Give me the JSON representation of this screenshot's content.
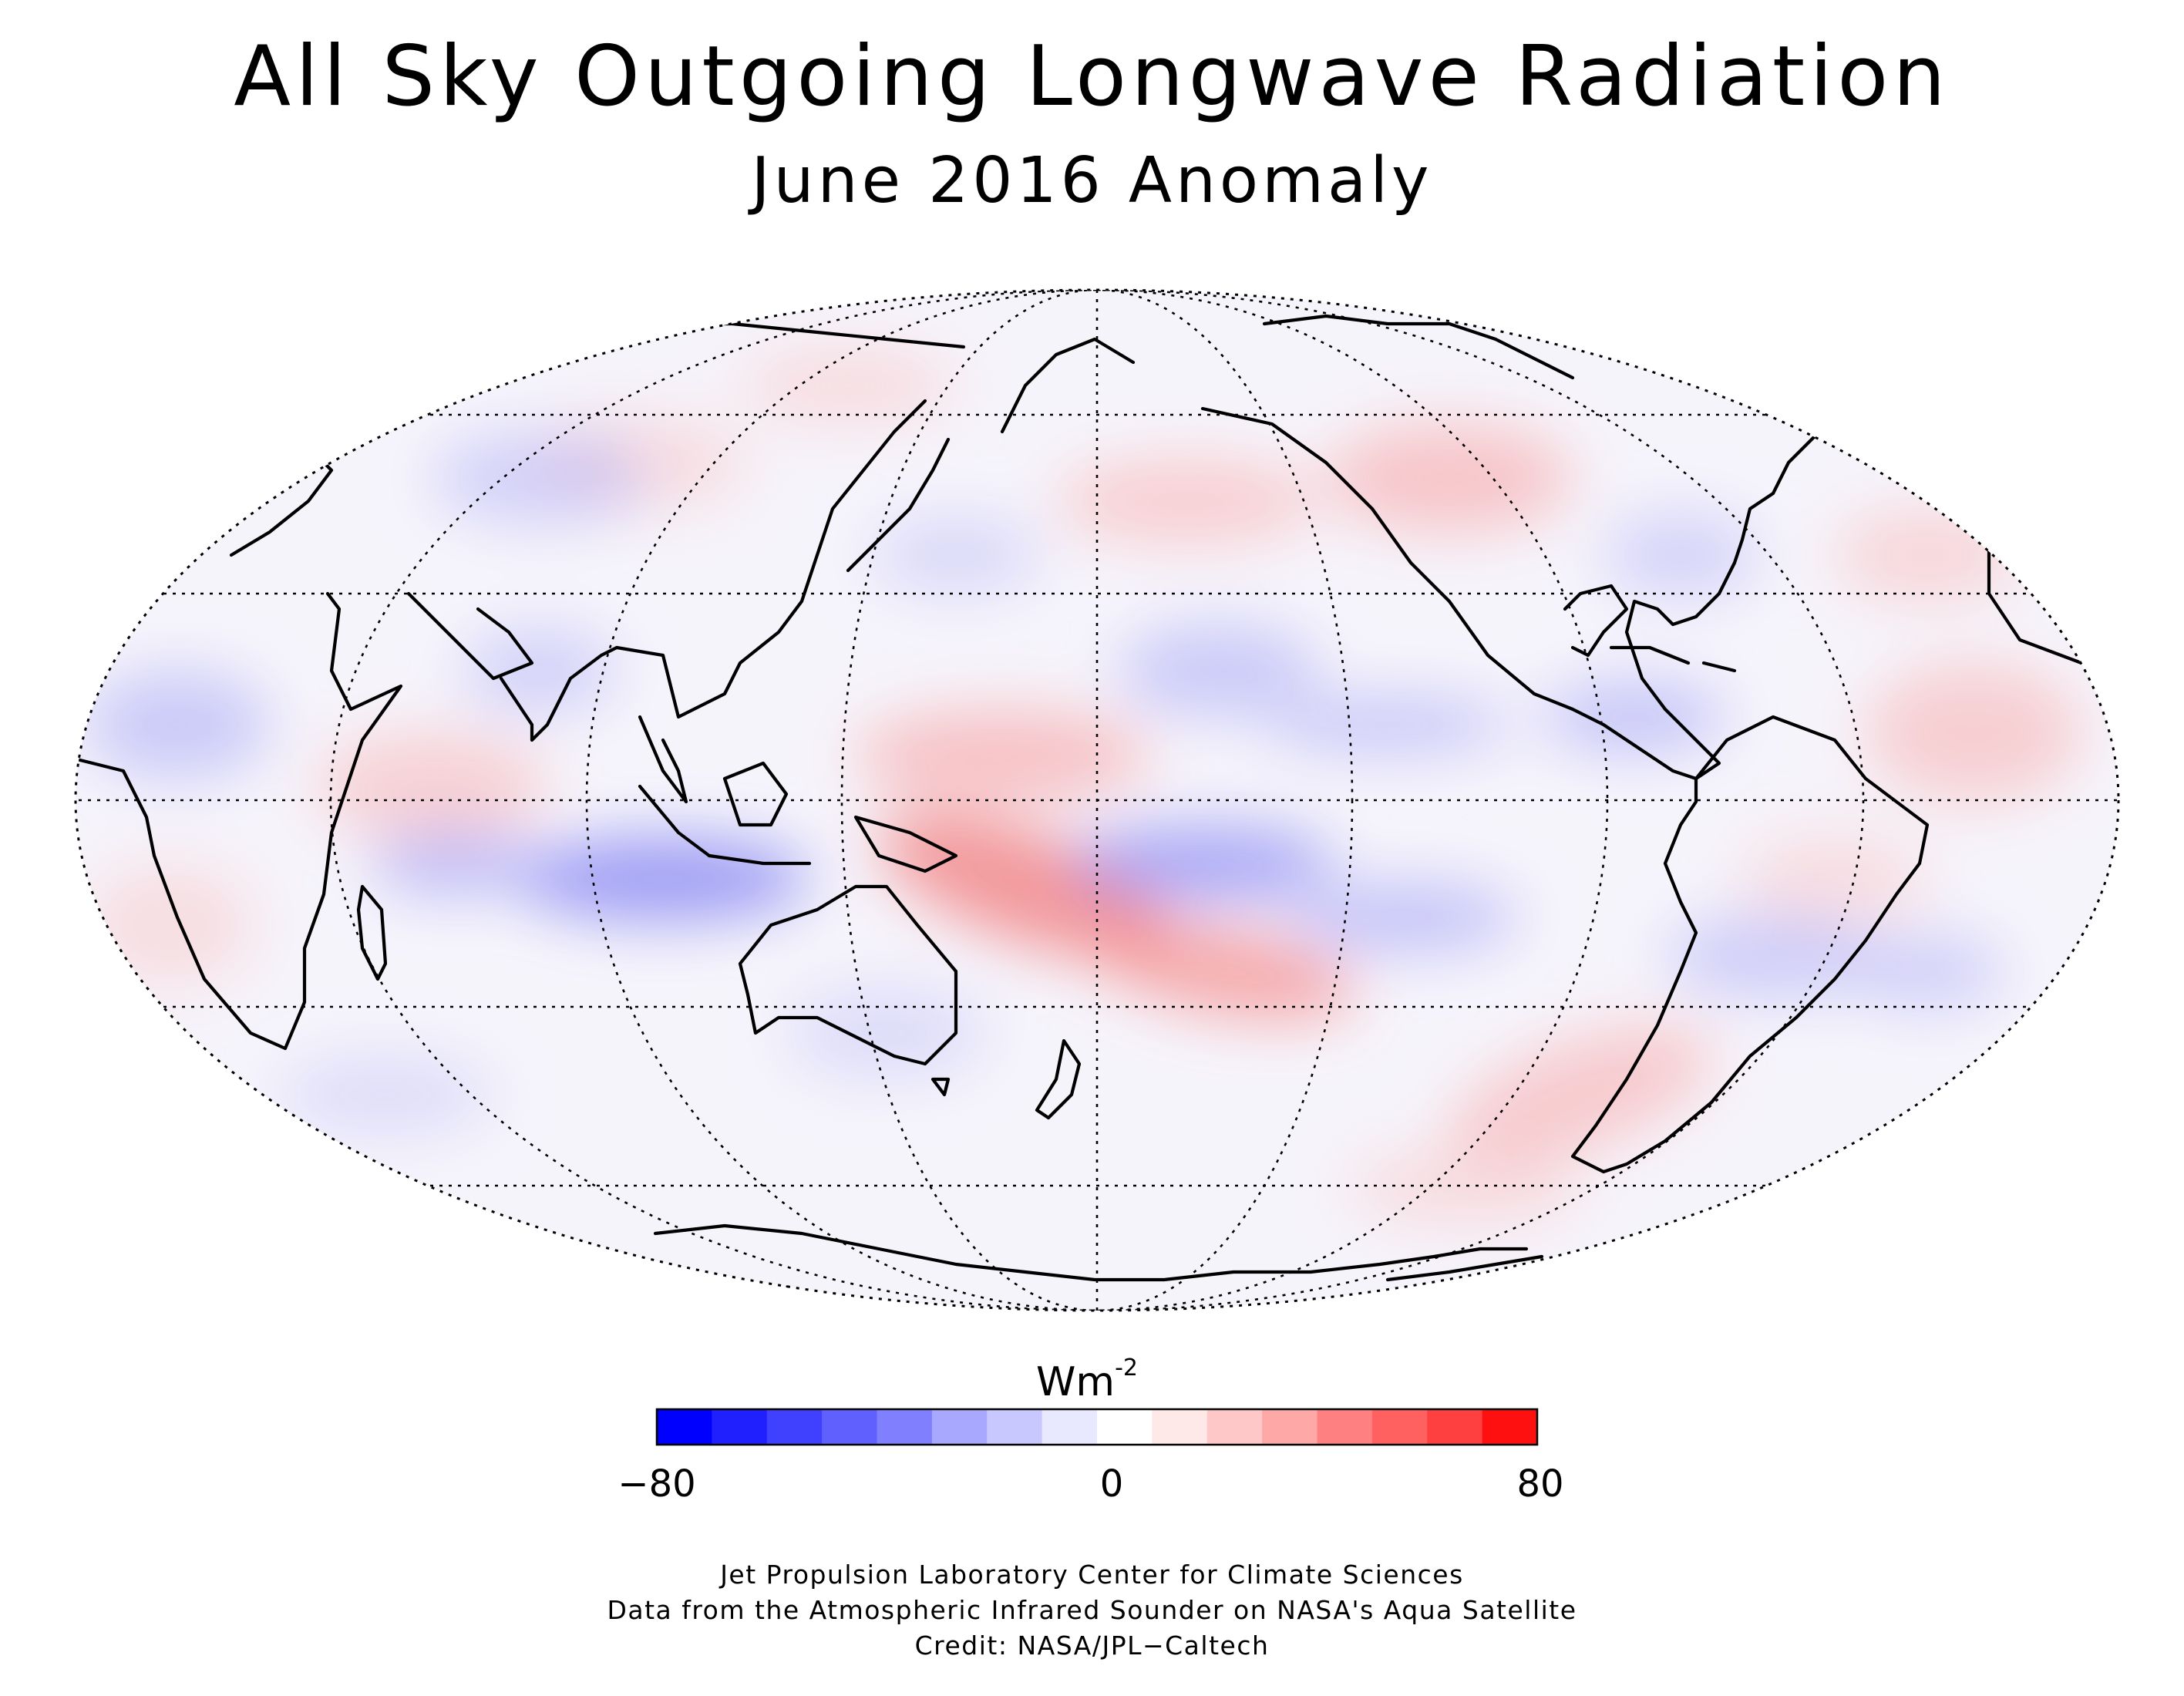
{
  "title": "All Sky Outgoing Longwave Radiation",
  "subtitle": "June 2016 Anomaly",
  "map": {
    "projection": "Mollweide",
    "central_longitude": 180,
    "graticule_lat_step_deg": 30,
    "graticule_lon_step_deg": 45,
    "style": "dotted graticule, black coastlines",
    "anomaly_features": [
      {
        "region": "central/west Pacific south of equator",
        "sign": "positive",
        "level": 40
      },
      {
        "region": "western Pacific tropics north of equator",
        "sign": "positive",
        "level": 25
      },
      {
        "region": "eastern Indian Ocean / Maritime Continent south of equator",
        "sign": "negative",
        "level": -45
      },
      {
        "region": "central Pacific south of equator",
        "sign": "negative",
        "level": -40
      },
      {
        "region": "Caribbean / Central America",
        "sign": "negative",
        "level": -25
      },
      {
        "region": "western North America",
        "sign": "positive",
        "level": 25
      },
      {
        "region": "southern South America",
        "sign": "positive",
        "level": 25
      }
    ]
  },
  "colorbar": {
    "unit_base": "Wm",
    "unit_exp": "-2",
    "min_label": "−80",
    "mid_label": "0",
    "max_label": "80",
    "range": [
      -80,
      80
    ],
    "colors": [
      "#0000ff",
      "#2020ff",
      "#4040ff",
      "#6060ff",
      "#8080ff",
      "#a8a8ff",
      "#c8c8ff",
      "#e8e8ff",
      "#ffffff",
      "#ffe8e8",
      "#ffc8c8",
      "#ffa8a8",
      "#ff8080",
      "#ff6060",
      "#ff4040",
      "#ff1010"
    ]
  },
  "credits": {
    "line1": "Jet Propulsion Laboratory Center for Climate Sciences",
    "line2": "Data from the Atmospheric Infrared Sounder on NASA's Aqua Satellite",
    "line3": "Credit: NASA/JPL−Caltech"
  }
}
